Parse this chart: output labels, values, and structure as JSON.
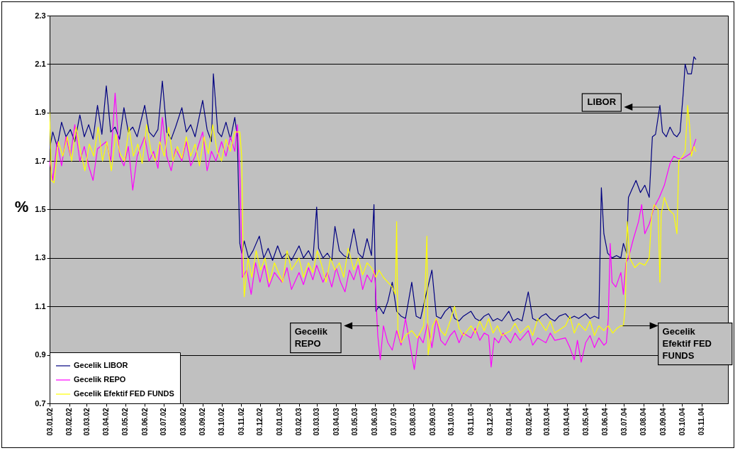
{
  "chart_data": {
    "type": "line",
    "ylabel": "%",
    "xlim": [
      "2002-01-03",
      "2004-12-15"
    ],
    "ylim": [
      0.7,
      2.3
    ],
    "yticks": [
      0.7,
      0.9,
      1.1,
      1.3,
      1.5,
      1.7,
      1.9,
      2.1,
      2.3
    ],
    "xticks": [
      {
        "value": "2002-01-03",
        "label": "03.01.02"
      },
      {
        "value": "2002-02-03",
        "label": "03.02.02"
      },
      {
        "value": "2002-03-03",
        "label": "03.03.02"
      },
      {
        "value": "2002-04-03",
        "label": "03.04.02"
      },
      {
        "value": "2002-05-03",
        "label": "03.05.02"
      },
      {
        "value": "2002-06-03",
        "label": "03.06.02"
      },
      {
        "value": "2002-07-03",
        "label": "03.07.02"
      },
      {
        "value": "2002-08-03",
        "label": "03.08.02"
      },
      {
        "value": "2002-09-03",
        "label": "03.09.02"
      },
      {
        "value": "2002-10-03",
        "label": "03.10.02"
      },
      {
        "value": "2002-11-03",
        "label": "03.11.02"
      },
      {
        "value": "2002-12-03",
        "label": "03.12.02"
      },
      {
        "value": "2003-01-03",
        "label": "03.01.03"
      },
      {
        "value": "2003-02-03",
        "label": "03.02.03"
      },
      {
        "value": "2003-03-03",
        "label": "03.03.03"
      },
      {
        "value": "2003-04-03",
        "label": "03.04.03"
      },
      {
        "value": "2003-05-03",
        "label": "03.05.03"
      },
      {
        "value": "2003-06-03",
        "label": "03.06.03"
      },
      {
        "value": "2003-07-03",
        "label": "03.07.03"
      },
      {
        "value": "2003-08-03",
        "label": "03.08.03"
      },
      {
        "value": "2003-09-03",
        "label": "03.09.03"
      },
      {
        "value": "2003-10-03",
        "label": "03.10.03"
      },
      {
        "value": "2003-11-03",
        "label": "03.11.03"
      },
      {
        "value": "2003-12-03",
        "label": "03.12.03"
      },
      {
        "value": "2004-01-03",
        "label": "03.01.04"
      },
      {
        "value": "2004-02-03",
        "label": "03.02.04"
      },
      {
        "value": "2004-03-03",
        "label": "03.03.04"
      },
      {
        "value": "2004-04-03",
        "label": "03.04.04"
      },
      {
        "value": "2004-05-03",
        "label": "03.05.04"
      },
      {
        "value": "2004-06-03",
        "label": "03.06.04"
      },
      {
        "value": "2004-07-03",
        "label": "03.07.04"
      },
      {
        "value": "2004-08-03",
        "label": "03.08.04"
      },
      {
        "value": "2004-09-03",
        "label": "03.09.04"
      },
      {
        "value": "2004-10-03",
        "label": "03.10.04"
      },
      {
        "value": "2004-11-03",
        "label": "03.11.04"
      }
    ],
    "grid": "y",
    "legend": "bottom left",
    "line_style": "solid",
    "marker": "none",
    "series": [
      {
        "name": "Gecelik LIBOR",
        "color": "#000080",
        "x": [
          "2002-01-03",
          "2002-01-08",
          "2002-01-15",
          "2002-01-22",
          "2002-01-29",
          "2002-02-05",
          "2002-02-12",
          "2002-02-20",
          "2002-02-27",
          "2002-03-06",
          "2002-03-13",
          "2002-03-20",
          "2002-03-27",
          "2002-04-03",
          "2002-04-10",
          "2002-04-17",
          "2002-04-24",
          "2002-05-01",
          "2002-05-08",
          "2002-05-15",
          "2002-05-22",
          "2002-06-03",
          "2002-06-10",
          "2002-06-17",
          "2002-06-24",
          "2002-07-01",
          "2002-07-08",
          "2002-07-15",
          "2002-07-22",
          "2002-08-01",
          "2002-08-08",
          "2002-08-15",
          "2002-08-22",
          "2002-09-03",
          "2002-09-10",
          "2002-09-17",
          "2002-09-20",
          "2002-09-27",
          "2002-10-03",
          "2002-10-10",
          "2002-10-17",
          "2002-10-24",
          "2002-10-28",
          "2002-11-01",
          "2002-11-04",
          "2002-11-08",
          "2002-11-15",
          "2002-11-22",
          "2002-12-02",
          "2002-12-09",
          "2002-12-16",
          "2002-12-23",
          "2002-12-31",
          "2003-01-07",
          "2003-01-15",
          "2003-01-22",
          "2003-02-03",
          "2003-02-10",
          "2003-02-18",
          "2003-02-25",
          "2003-03-03",
          "2003-03-06",
          "2003-03-13",
          "2003-03-20",
          "2003-03-27",
          "2003-04-01",
          "2003-04-08",
          "2003-04-15",
          "2003-04-22",
          "2003-05-01",
          "2003-05-08",
          "2003-05-15",
          "2003-05-22",
          "2003-05-29",
          "2003-06-02",
          "2003-06-05",
          "2003-06-10",
          "2003-06-17",
          "2003-06-24",
          "2003-07-01",
          "2003-07-08",
          "2003-07-15",
          "2003-07-22",
          "2003-08-01",
          "2003-08-08",
          "2003-08-15",
          "2003-08-22",
          "2003-09-02",
          "2003-09-09",
          "2003-09-16",
          "2003-09-23",
          "2003-10-01",
          "2003-10-08",
          "2003-10-15",
          "2003-10-22",
          "2003-11-03",
          "2003-11-10",
          "2003-11-17",
          "2003-11-24",
          "2003-12-01",
          "2003-12-08",
          "2003-12-15",
          "2003-12-22",
          "2004-01-02",
          "2004-01-09",
          "2004-01-16",
          "2004-01-23",
          "2004-02-02",
          "2004-02-09",
          "2004-02-16",
          "2004-02-23",
          "2004-03-01",
          "2004-03-08",
          "2004-03-15",
          "2004-03-22",
          "2004-04-01",
          "2004-04-08",
          "2004-04-15",
          "2004-04-22",
          "2004-05-03",
          "2004-05-10",
          "2004-05-17",
          "2004-05-24",
          "2004-05-28",
          "2004-06-01",
          "2004-06-07",
          "2004-06-14",
          "2004-06-21",
          "2004-06-28",
          "2004-07-02",
          "2004-07-07",
          "2004-07-10",
          "2004-07-15",
          "2004-07-22",
          "2004-07-29",
          "2004-08-05",
          "2004-08-12",
          "2004-08-17",
          "2004-08-22",
          "2004-08-29",
          "2004-09-02",
          "2004-09-08",
          "2004-09-14",
          "2004-09-20",
          "2004-09-25",
          "2004-09-30",
          "2004-10-05",
          "2004-10-08",
          "2004-10-12",
          "2004-10-18",
          "2004-10-22",
          "2004-10-25"
        ],
        "values": [
          1.75,
          1.82,
          1.76,
          1.86,
          1.8,
          1.83,
          1.78,
          1.89,
          1.8,
          1.85,
          1.79,
          1.93,
          1.81,
          2.01,
          1.82,
          1.84,
          1.79,
          1.92,
          1.82,
          1.84,
          1.8,
          1.93,
          1.82,
          1.8,
          1.83,
          2.03,
          1.82,
          1.79,
          1.84,
          1.92,
          1.82,
          1.85,
          1.8,
          1.95,
          1.83,
          1.78,
          2.06,
          1.82,
          1.8,
          1.86,
          1.79,
          1.88,
          1.8,
          1.36,
          1.32,
          1.37,
          1.3,
          1.33,
          1.39,
          1.3,
          1.34,
          1.29,
          1.35,
          1.3,
          1.32,
          1.29,
          1.35,
          1.3,
          1.33,
          1.29,
          1.51,
          1.34,
          1.3,
          1.32,
          1.29,
          1.43,
          1.33,
          1.31,
          1.3,
          1.42,
          1.32,
          1.3,
          1.38,
          1.31,
          1.52,
          1.08,
          1.1,
          1.07,
          1.12,
          1.2,
          1.08,
          1.06,
          1.05,
          1.2,
          1.06,
          1.05,
          1.13,
          1.25,
          1.06,
          1.05,
          1.08,
          1.1,
          1.05,
          1.04,
          1.06,
          1.08,
          1.05,
          1.04,
          1.06,
          1.07,
          1.04,
          1.05,
          1.04,
          1.08,
          1.04,
          1.05,
          1.04,
          1.16,
          1.05,
          1.04,
          1.06,
          1.07,
          1.05,
          1.04,
          1.06,
          1.07,
          1.05,
          1.06,
          1.05,
          1.07,
          1.05,
          1.06,
          1.05,
          1.59,
          1.4,
          1.32,
          1.3,
          1.31,
          1.3,
          1.36,
          1.32,
          1.55,
          1.58,
          1.62,
          1.57,
          1.6,
          1.55,
          1.8,
          1.81,
          1.93,
          1.82,
          1.8,
          1.84,
          1.81,
          1.8,
          1.82,
          1.98,
          2.1,
          2.06,
          2.06,
          2.13,
          2.12
        ]
      },
      {
        "name": "Gecelik REPO",
        "color": "#ff00ff",
        "x": [
          "2002-01-03",
          "2002-01-08",
          "2002-01-15",
          "2002-01-22",
          "2002-01-29",
          "2002-02-05",
          "2002-02-12",
          "2002-02-20",
          "2002-02-27",
          "2002-03-06",
          "2002-03-13",
          "2002-03-20",
          "2002-04-03",
          "2002-04-10",
          "2002-04-17",
          "2002-04-24",
          "2002-05-01",
          "2002-05-08",
          "2002-05-15",
          "2002-05-22",
          "2002-06-03",
          "2002-06-10",
          "2002-06-17",
          "2002-06-24",
          "2002-07-01",
          "2002-07-08",
          "2002-07-15",
          "2002-07-22",
          "2002-08-01",
          "2002-08-08",
          "2002-08-15",
          "2002-08-22",
          "2002-09-03",
          "2002-09-10",
          "2002-09-17",
          "2002-09-24",
          "2002-10-03",
          "2002-10-10",
          "2002-10-17",
          "2002-10-24",
          "2002-10-28",
          "2002-11-01",
          "2002-11-05",
          "2002-11-12",
          "2002-11-19",
          "2002-11-26",
          "2002-12-03",
          "2002-12-10",
          "2002-12-17",
          "2002-12-26",
          "2003-01-07",
          "2003-01-15",
          "2003-01-22",
          "2003-02-03",
          "2003-02-10",
          "2003-02-18",
          "2003-02-25",
          "2003-03-03",
          "2003-03-13",
          "2003-03-20",
          "2003-03-27",
          "2003-04-03",
          "2003-04-10",
          "2003-04-17",
          "2003-04-24",
          "2003-05-01",
          "2003-05-08",
          "2003-05-15",
          "2003-05-22",
          "2003-05-29",
          "2003-06-03",
          "2003-06-08",
          "2003-06-12",
          "2003-06-17",
          "2003-06-24",
          "2003-07-01",
          "2003-07-08",
          "2003-07-15",
          "2003-07-22",
          "2003-08-01",
          "2003-08-05",
          "2003-08-12",
          "2003-08-19",
          "2003-08-26",
          "2003-09-02",
          "2003-09-09",
          "2003-09-16",
          "2003-09-23",
          "2003-10-01",
          "2003-10-08",
          "2003-10-15",
          "2003-10-22",
          "2003-11-03",
          "2003-11-10",
          "2003-11-17",
          "2003-11-24",
          "2003-12-01",
          "2003-12-05",
          "2003-12-10",
          "2003-12-17",
          "2003-12-24",
          "2004-01-05",
          "2004-01-12",
          "2004-01-20",
          "2004-02-02",
          "2004-02-09",
          "2004-02-17",
          "2004-03-01",
          "2004-03-08",
          "2004-03-15",
          "2004-04-01",
          "2004-04-08",
          "2004-04-15",
          "2004-04-20",
          "2004-04-26",
          "2004-05-03",
          "2004-05-10",
          "2004-05-17",
          "2004-05-24",
          "2004-06-01",
          "2004-06-05",
          "2004-06-08",
          "2004-06-11",
          "2004-06-14",
          "2004-06-20",
          "2004-06-28",
          "2004-07-02",
          "2004-07-06",
          "2004-07-10",
          "2004-07-18",
          "2004-07-26",
          "2004-07-31",
          "2004-08-05",
          "2004-08-12",
          "2004-08-20",
          "2004-08-28",
          "2004-09-05",
          "2004-09-10",
          "2004-09-14",
          "2004-09-20",
          "2004-09-27",
          "2004-10-04",
          "2004-10-10",
          "2004-10-16",
          "2004-10-20",
          "2004-10-25"
        ],
        "values": [
          1.7,
          1.62,
          1.78,
          1.68,
          1.8,
          1.72,
          1.85,
          1.7,
          1.76,
          1.68,
          1.62,
          1.75,
          1.78,
          1.7,
          1.98,
          1.72,
          1.68,
          1.76,
          1.58,
          1.72,
          1.8,
          1.7,
          1.74,
          1.67,
          1.88,
          1.72,
          1.66,
          1.75,
          1.7,
          1.78,
          1.68,
          1.72,
          1.82,
          1.66,
          1.74,
          1.7,
          1.78,
          1.72,
          1.8,
          1.74,
          1.85,
          1.65,
          1.22,
          1.25,
          1.15,
          1.28,
          1.2,
          1.27,
          1.18,
          1.24,
          1.2,
          1.26,
          1.17,
          1.24,
          1.19,
          1.26,
          1.21,
          1.27,
          1.2,
          1.24,
          1.18,
          1.26,
          1.2,
          1.16,
          1.25,
          1.21,
          1.27,
          1.17,
          1.23,
          1.2,
          1.25,
          0.98,
          0.88,
          1.02,
          0.95,
          0.92,
          1.0,
          0.94,
          1.05,
          0.9,
          0.84,
          0.98,
          0.95,
          1.03,
          0.93,
          1.05,
          0.96,
          0.94,
          0.98,
          1.0,
          0.95,
          0.99,
          0.97,
          1.01,
          0.96,
          0.99,
          0.98,
          0.85,
          0.97,
          0.95,
          0.99,
          0.95,
          0.99,
          0.96,
          1.0,
          0.94,
          0.97,
          0.95,
          0.99,
          0.96,
          0.97,
          0.93,
          0.88,
          0.96,
          0.87,
          0.95,
          0.98,
          0.93,
          0.97,
          0.94,
          0.95,
          1.05,
          1.36,
          1.2,
          1.18,
          1.24,
          1.15,
          1.28,
          1.3,
          1.38,
          1.45,
          1.52,
          1.4,
          1.44,
          1.51,
          1.55,
          1.6,
          1.65,
          1.69,
          1.72,
          1.71,
          1.71,
          1.72,
          1.73,
          1.75,
          1.79
        ]
      },
      {
        "name": "Gecelik Efektif FED FUNDS",
        "color": "#ffff00",
        "x": [
          "2002-01-03",
          "2002-01-06",
          "2002-01-10",
          "2002-01-17",
          "2002-01-24",
          "2002-01-31",
          "2002-02-07",
          "2002-02-14",
          "2002-02-21",
          "2002-02-28",
          "2002-03-07",
          "2002-03-14",
          "2002-03-21",
          "2002-03-28",
          "2002-04-04",
          "2002-04-11",
          "2002-04-18",
          "2002-04-25",
          "2002-05-02",
          "2002-05-09",
          "2002-05-16",
          "2002-05-23",
          "2002-05-30",
          "2002-06-06",
          "2002-06-13",
          "2002-06-20",
          "2002-06-27",
          "2002-07-04",
          "2002-07-11",
          "2002-07-18",
          "2002-07-25",
          "2002-08-01",
          "2002-08-08",
          "2002-08-15",
          "2002-08-22",
          "2002-08-29",
          "2002-09-05",
          "2002-09-12",
          "2002-09-19",
          "2002-09-26",
          "2002-10-03",
          "2002-10-10",
          "2002-10-17",
          "2002-10-24",
          "2002-11-01",
          "2002-11-04",
          "2002-11-06",
          "2002-11-08",
          "2002-11-14",
          "2002-11-20",
          "2002-11-27",
          "2002-12-04",
          "2002-12-11",
          "2002-12-18",
          "2002-12-26",
          "2003-01-08",
          "2003-01-15",
          "2003-01-22",
          "2003-02-03",
          "2003-02-10",
          "2003-02-18",
          "2003-02-25",
          "2003-03-04",
          "2003-03-11",
          "2003-03-18",
          "2003-03-25",
          "2003-04-01",
          "2003-04-08",
          "2003-04-15",
          "2003-04-22",
          "2003-05-01",
          "2003-05-08",
          "2003-05-15",
          "2003-05-22",
          "2003-05-29",
          "2003-06-05",
          "2003-06-10",
          "2003-06-17",
          "2003-06-24",
          "2003-07-01",
          "2003-07-06",
          "2003-07-08",
          "2003-07-10",
          "2003-07-15",
          "2003-07-22",
          "2003-08-01",
          "2003-08-10",
          "2003-08-20",
          "2003-08-25",
          "2003-08-27",
          "2003-09-03",
          "2003-09-09",
          "2003-09-16",
          "2003-09-23",
          "2003-10-01",
          "2003-10-08",
          "2003-10-15",
          "2003-10-22",
          "2003-11-03",
          "2003-11-10",
          "2003-11-17",
          "2003-11-24",
          "2003-12-01",
          "2003-12-08",
          "2003-12-15",
          "2003-12-22",
          "2004-01-05",
          "2004-01-12",
          "2004-01-20",
          "2004-02-02",
          "2004-02-09",
          "2004-02-17",
          "2004-03-01",
          "2004-03-08",
          "2004-03-15",
          "2004-04-01",
          "2004-04-08",
          "2004-04-15",
          "2004-04-22",
          "2004-05-03",
          "2004-05-10",
          "2004-05-17",
          "2004-05-24",
          "2004-06-01",
          "2004-06-08",
          "2004-06-15",
          "2004-06-22",
          "2004-06-28",
          "2004-07-02",
          "2004-07-05",
          "2004-07-08",
          "2004-07-12",
          "2004-07-20",
          "2004-07-28",
          "2004-08-05",
          "2004-08-12",
          "2004-08-16",
          "2004-08-20",
          "2004-08-26",
          "2004-08-29",
          "2004-08-31",
          "2004-09-05",
          "2004-09-12",
          "2004-09-20",
          "2004-09-25",
          "2004-09-28",
          "2004-10-04",
          "2004-10-08",
          "2004-10-12",
          "2004-10-15",
          "2004-10-18",
          "2004-10-22",
          "2004-10-25"
        ],
        "values": [
          1.9,
          1.62,
          1.61,
          1.78,
          1.72,
          1.8,
          1.7,
          1.84,
          1.74,
          1.66,
          1.77,
          1.72,
          1.84,
          1.7,
          1.78,
          1.66,
          1.81,
          1.73,
          1.7,
          1.84,
          1.72,
          1.77,
          1.69,
          1.85,
          1.74,
          1.7,
          1.78,
          1.72,
          1.84,
          1.7,
          1.76,
          1.71,
          1.8,
          1.72,
          1.77,
          1.68,
          1.8,
          1.73,
          1.85,
          1.74,
          1.7,
          1.79,
          1.74,
          1.82,
          1.82,
          1.72,
          1.35,
          1.14,
          1.3,
          1.22,
          1.33,
          1.25,
          1.3,
          1.2,
          1.28,
          1.2,
          1.33,
          1.25,
          1.3,
          1.22,
          1.28,
          1.24,
          1.33,
          1.27,
          1.2,
          1.3,
          1.25,
          1.28,
          1.22,
          1.34,
          1.25,
          1.3,
          1.23,
          1.28,
          1.26,
          1.22,
          1.25,
          1.22,
          1.2,
          1.18,
          1.15,
          1.45,
          1.0,
          0.95,
          0.98,
          1.0,
          0.97,
          1.02,
          1.39,
          0.9,
          1.02,
          1.05,
          1.0,
          0.98,
          1.04,
          1.1,
          1.01,
          0.98,
          1.02,
          0.99,
          1.04,
          1.0,
          1.05,
          0.99,
          1.02,
          0.98,
          1.0,
          1.03,
          0.99,
          1.02,
          0.98,
          1.05,
          1.0,
          1.04,
          0.99,
          1.02,
          1.06,
          0.99,
          1.03,
          1.0,
          1.04,
          0.98,
          1.02,
          1.0,
          1.02,
          0.99,
          1.01,
          1.02,
          1.02,
          1.1,
          1.45,
          1.3,
          1.26,
          1.28,
          1.27,
          1.3,
          1.48,
          1.52,
          1.5,
          1.2,
          1.48,
          1.55,
          1.5,
          1.48,
          1.4,
          1.7,
          1.72,
          1.74,
          1.93,
          1.85,
          1.72,
          1.76,
          1.74
        ]
      }
    ],
    "annotations": [
      "LIBOR",
      "Gecelik REPO",
      {
        "text": "Gecelik Efektif FED FUNDS",
        "x": "2004-07-01",
        "y": 1.02
      }
    ]
  }
}
